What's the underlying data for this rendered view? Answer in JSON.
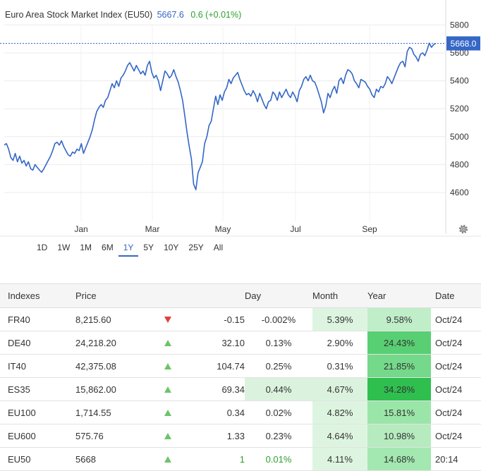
{
  "header": {
    "name": "Euro Area Stock Market Index (EU50)",
    "value": "5667.6",
    "change": "0.6 (+0.01%)"
  },
  "chart_data": {
    "type": "line",
    "title": "Euro Area Stock Market Index (EU50)",
    "ylim": [
      4400,
      5900
    ],
    "yticks": [
      4600,
      4800,
      5000,
      5200,
      5400,
      5600,
      5800
    ],
    "ytick_labels": [
      "4600",
      "4800",
      "5000",
      "5200",
      "5400",
      "5600",
      "5800"
    ],
    "xlabels": [
      "Jan",
      "Mar",
      "May",
      "Jul",
      "Sep"
    ],
    "last_value": 5668.0,
    "last_label": "5668.0",
    "grid": true,
    "series": [
      {
        "values": [
          4940,
          4950,
          4910,
          4850,
          4830,
          4880,
          4820,
          4860,
          4810,
          4830,
          4790,
          4820,
          4770,
          4760,
          4800,
          4780,
          4760,
          4745,
          4770,
          4800,
          4830,
          4860,
          4900,
          4950,
          4960,
          4940,
          4970,
          4930,
          4900,
          4870,
          4860,
          4890,
          4880,
          4910,
          4900,
          4950,
          4880,
          4920,
          4960,
          5000,
          5050,
          5120,
          5180,
          5210,
          5230,
          5210,
          5260,
          5280,
          5330,
          5380,
          5350,
          5400,
          5360,
          5420,
          5440,
          5470,
          5510,
          5530,
          5500,
          5470,
          5510,
          5480,
          5450,
          5470,
          5440,
          5510,
          5540,
          5460,
          5420,
          5440,
          5400,
          5330,
          5400,
          5470,
          5450,
          5420,
          5440,
          5480,
          5430,
          5390,
          5330,
          5260,
          5150,
          5030,
          4930,
          4840,
          4660,
          4620,
          4740,
          4780,
          4820,
          4950,
          5000,
          5080,
          5110,
          5200,
          5290,
          5230,
          5300,
          5260,
          5320,
          5350,
          5410,
          5380,
          5420,
          5440,
          5460,
          5410,
          5370,
          5330,
          5300,
          5310,
          5290,
          5330,
          5300,
          5250,
          5310,
          5270,
          5230,
          5200,
          5250,
          5260,
          5320,
          5300,
          5260,
          5320,
          5280,
          5310,
          5340,
          5300,
          5280,
          5320,
          5290,
          5250,
          5330,
          5360,
          5410,
          5430,
          5400,
          5440,
          5400,
          5390,
          5350,
          5300,
          5250,
          5170,
          5220,
          5310,
          5280,
          5330,
          5360,
          5310,
          5400,
          5420,
          5380,
          5440,
          5480,
          5470,
          5450,
          5400,
          5380,
          5350,
          5410,
          5400,
          5390,
          5360,
          5340,
          5300,
          5280,
          5340,
          5320,
          5360,
          5350,
          5380,
          5430,
          5410,
          5380,
          5420,
          5460,
          5500,
          5530,
          5540,
          5500,
          5610,
          5640,
          5630,
          5590,
          5570,
          5540,
          5590,
          5600,
          5580,
          5620,
          5670,
          5640,
          5660,
          5668
        ]
      }
    ]
  },
  "gear_icon": "gear-icon",
  "ranges": [
    {
      "label": "1D",
      "active": false
    },
    {
      "label": "1W",
      "active": false
    },
    {
      "label": "1M",
      "active": false
    },
    {
      "label": "6M",
      "active": false
    },
    {
      "label": "1Y",
      "active": true
    },
    {
      "label": "5Y",
      "active": false
    },
    {
      "label": "10Y",
      "active": false
    },
    {
      "label": "25Y",
      "active": false
    },
    {
      "label": "All",
      "active": false
    }
  ],
  "table": {
    "headers": {
      "name": "Indexes",
      "price": "Price",
      "day": "Day",
      "month": "Month",
      "year": "Year",
      "date": "Date"
    },
    "rows": [
      {
        "name": "FR40",
        "price": "8,215.60",
        "dir": "down",
        "change": "-0.15",
        "day": "-0.002%",
        "month": "5.39%",
        "year": "9.58%",
        "date": "Oct/24",
        "day_bg": "#ffffff",
        "month_bg": "#ddf5e0",
        "year_bg": "#bfeec8"
      },
      {
        "name": "DE40",
        "price": "24,218.20",
        "dir": "up",
        "change": "32.10",
        "day": "0.13%",
        "month": "2.90%",
        "year": "24.43%",
        "date": "Oct/24",
        "day_bg": "#ffffff",
        "month_bg": "#ffffff",
        "year_bg": "#58cf73"
      },
      {
        "name": "IT40",
        "price": "42,375.08",
        "dir": "up",
        "change": "104.74",
        "day": "0.25%",
        "month": "0.31%",
        "year": "21.85%",
        "date": "Oct/24",
        "day_bg": "#ffffff",
        "month_bg": "#ffffff",
        "year_bg": "#74d98a"
      },
      {
        "name": "ES35",
        "price": "15,862.00",
        "dir": "up",
        "change": "69.34",
        "day": "0.44%",
        "month": "4.67%",
        "year": "34.28%",
        "date": "Oct/24",
        "day_bg": "#dbf3de",
        "month_bg": "#dbf3de",
        "year_bg": "#2ebf4f"
      },
      {
        "name": "EU100",
        "price": "1,714.55",
        "dir": "up",
        "change": "0.34",
        "day": "0.02%",
        "month": "4.82%",
        "year": "15.81%",
        "date": "Oct/24",
        "day_bg": "#ffffff",
        "month_bg": "#ddf5e0",
        "year_bg": "#9ae6a9"
      },
      {
        "name": "EU600",
        "price": "575.76",
        "dir": "up",
        "change": "1.33",
        "day": "0.23%",
        "month": "4.64%",
        "year": "10.98%",
        "date": "Oct/24",
        "day_bg": "#ffffff",
        "month_bg": "#ddf5e0",
        "year_bg": "#b6ebbf"
      },
      {
        "name": "EU50",
        "price": "5668",
        "dir": "up",
        "change": "1",
        "day": "0.01%",
        "month": "4.11%",
        "year": "14.68%",
        "date": "20:14",
        "day_bg": "#ffffff",
        "month_bg": "#ddf5e0",
        "year_bg": "#a2e8b0",
        "day_color": "#2ca02c",
        "change_color": "#2ca02c"
      }
    ]
  }
}
